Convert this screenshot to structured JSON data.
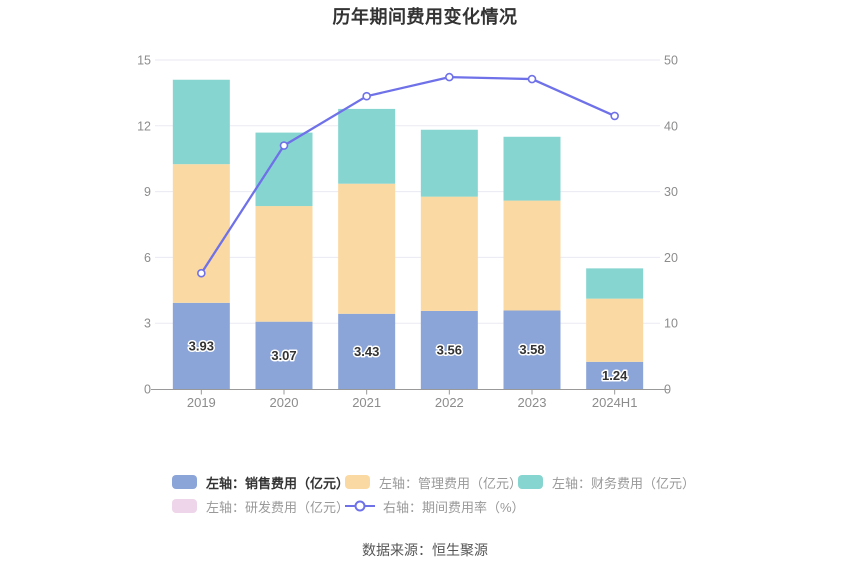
{
  "title": "历年期间费用变化情况",
  "footer": "数据来源：恒生聚源",
  "colors": {
    "sales": "#8CA5D8",
    "management": "#FBD9A2",
    "finance": "#87D5D0",
    "rnd": "#EFD5EA",
    "rate_line": "#6F71E9",
    "grid": "#EAEAF2",
    "axis": "#999999",
    "tick_text": "#8C8C8C",
    "bar_label_text": "#333333",
    "bar_label_halo": "#FFFFFF",
    "title_text": "#333333",
    "legend_text": "#999999",
    "legend_text_active": "#333333",
    "footer_text": "#555555"
  },
  "chart_data": {
    "type": "bar",
    "subtype": "stacked-bar-with-line",
    "title": "历年期间费用变化情况",
    "categories": [
      "2019",
      "2020",
      "2021",
      "2022",
      "2023",
      "2024H1"
    ],
    "series": [
      {
        "name": "左轴：销售费用（亿元）",
        "type": "bar",
        "stack": true,
        "color_key": "sales",
        "values": [
          3.93,
          3.07,
          3.43,
          3.56,
          3.58,
          1.24
        ],
        "labels": [
          "3.93",
          "3.07",
          "3.43",
          "3.56",
          "3.58",
          "1.24"
        ],
        "labels_visible": true
      },
      {
        "name": "左轴：管理费用（亿元）",
        "type": "bar",
        "stack": true,
        "color_key": "management",
        "values": [
          6.32,
          5.27,
          5.93,
          5.21,
          5.01,
          2.88
        ],
        "labels_visible": false
      },
      {
        "name": "左轴：财务费用（亿元）",
        "type": "bar",
        "stack": true,
        "color_key": "finance",
        "values": [
          3.85,
          3.35,
          3.41,
          3.05,
          2.91,
          1.38
        ],
        "labels_visible": false
      },
      {
        "name": "左轴：研发费用（亿元）",
        "type": "bar",
        "stack": true,
        "color_key": "rnd",
        "values": [
          0,
          0,
          0,
          0,
          0,
          0
        ],
        "labels_visible": false
      },
      {
        "name": "右轴：期间费用率（%）",
        "type": "line",
        "axis": "right",
        "color_key": "rate_line",
        "values": [
          17.6,
          37.0,
          44.5,
          47.4,
          47.1,
          41.5
        ],
        "labels_visible": false
      }
    ],
    "left_axis": {
      "min": 0,
      "max": 15,
      "ticks": [
        0,
        3,
        6,
        9,
        12,
        15
      ]
    },
    "right_axis": {
      "min": 0,
      "max": 50,
      "ticks": [
        0,
        10,
        20,
        30,
        40,
        50
      ]
    },
    "grid": true,
    "legend_position": "bottom"
  },
  "legend": {
    "items": [
      {
        "label": "左轴：销售费用（亿元）",
        "active": true
      },
      {
        "label": "左轴：管理费用（亿元）",
        "active": false
      },
      {
        "label": "左轴：财务费用（亿元）",
        "active": false
      },
      {
        "label": "左轴：研发费用（亿元）",
        "active": false
      },
      {
        "label": "右轴：期间费用率（%）",
        "active": false
      }
    ]
  }
}
